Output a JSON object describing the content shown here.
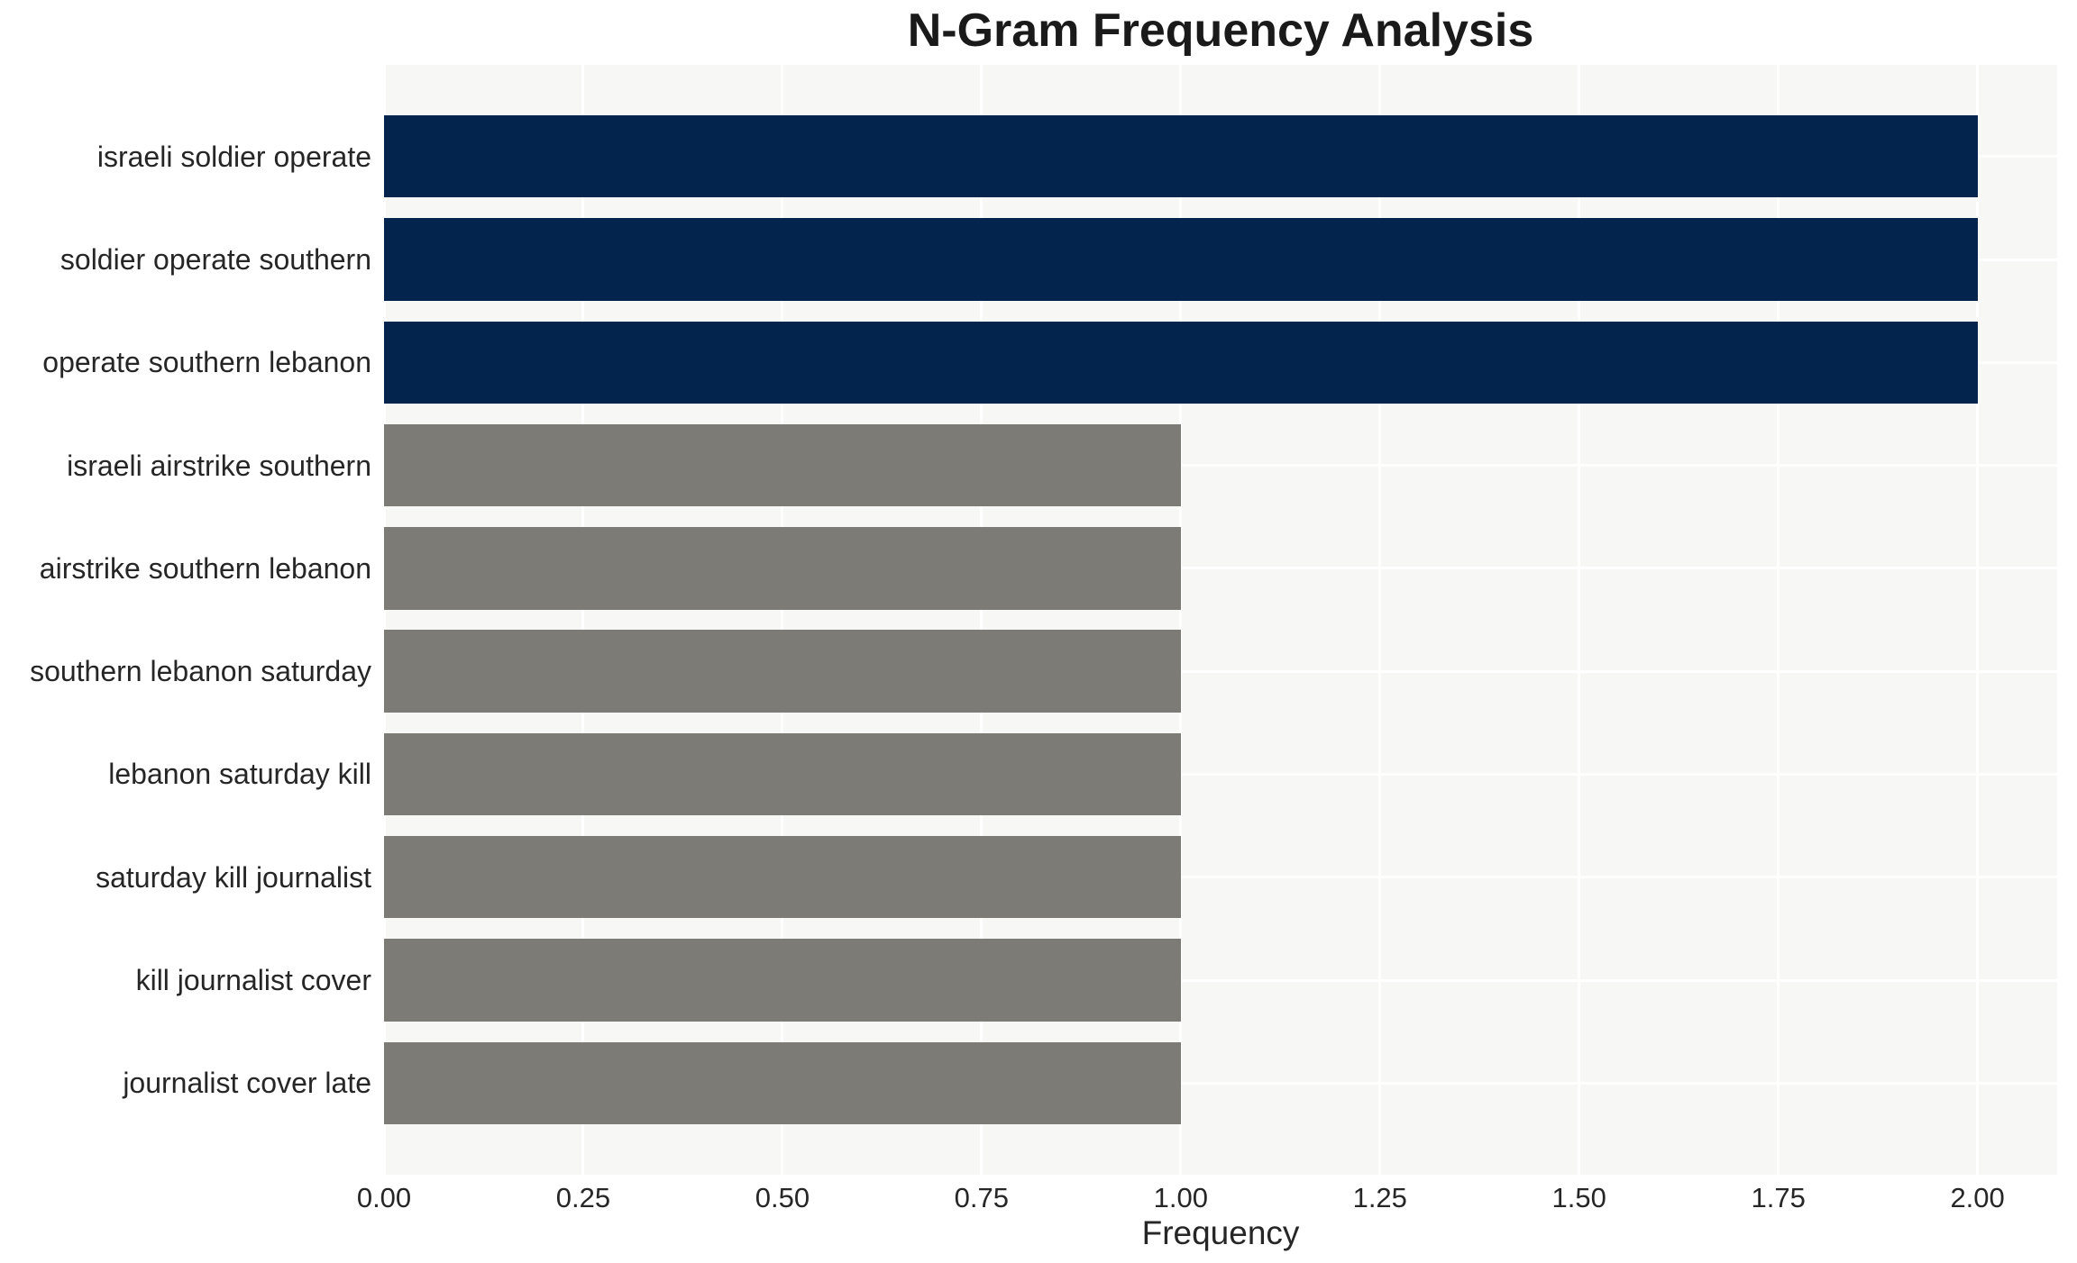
{
  "chart_data": {
    "type": "bar",
    "orientation": "horizontal",
    "title": "N-Gram Frequency Analysis",
    "xlabel": "Frequency",
    "ylabel": "",
    "categories": [
      "israeli soldier operate",
      "soldier operate southern",
      "operate southern lebanon",
      "israeli airstrike southern",
      "airstrike southern lebanon",
      "southern lebanon saturday",
      "lebanon saturday kill",
      "saturday kill journalist",
      "kill journalist cover",
      "journalist cover late"
    ],
    "values": [
      2,
      2,
      2,
      1,
      1,
      1,
      1,
      1,
      1,
      1
    ],
    "bar_colors": [
      "#03244D",
      "#03244D",
      "#03244D",
      "#7C7B75",
      "#7C7B75",
      "#7C7B75",
      "#7C7B75",
      "#7C7B75",
      "#7C7B75",
      "#7C7B75"
    ],
    "xlim": [
      0,
      2.1
    ],
    "xticks": [
      "0.00",
      "0.25",
      "0.50",
      "0.75",
      "1.00",
      "1.25",
      "1.50",
      "1.75",
      "2.00"
    ],
    "xtick_values": [
      0,
      0.25,
      0.5,
      0.75,
      1.0,
      1.25,
      1.5,
      1.75,
      2.0
    ],
    "grid": true,
    "legend_position": "none",
    "colors": {
      "navy": "#03244D",
      "gray": "#7C7B75",
      "plot_background": "#F7F7F6",
      "gridline": "#FFFFFF",
      "text": "#262626"
    }
  }
}
